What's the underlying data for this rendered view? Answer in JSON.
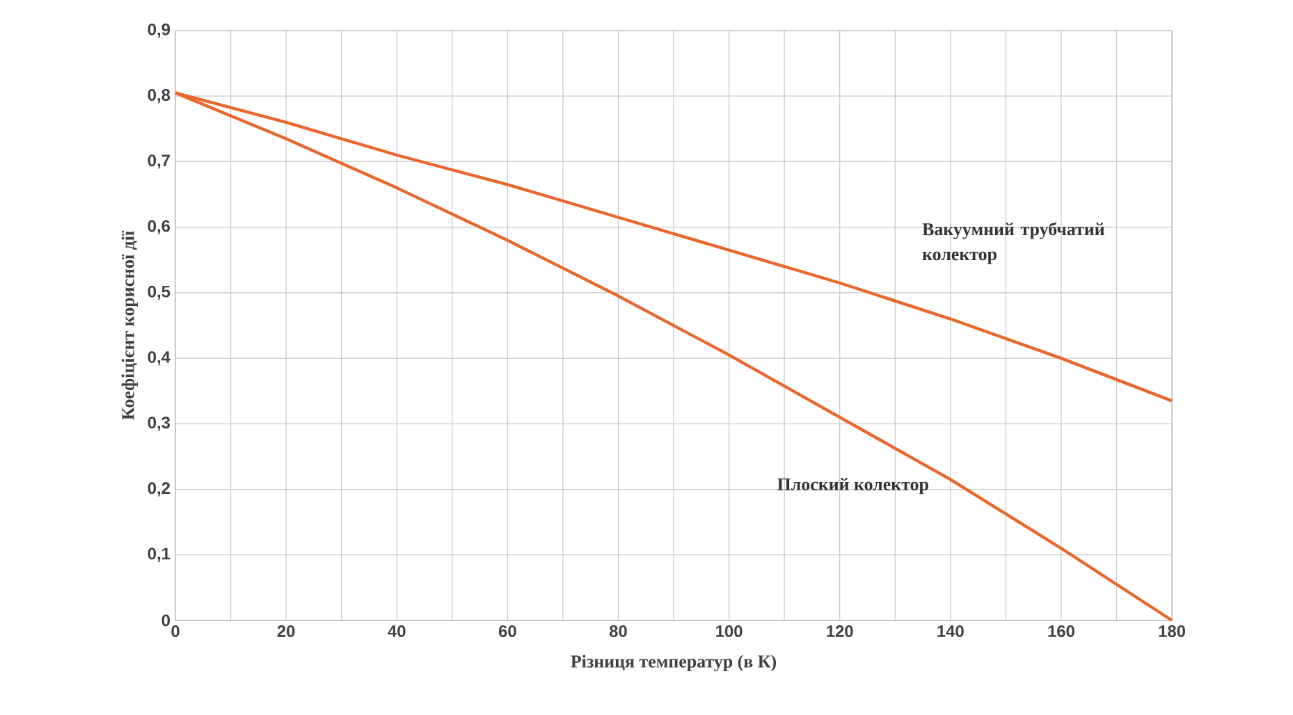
{
  "chart_data": {
    "type": "line",
    "xlabel": "Різниця температур (в К)",
    "ylabel": "Коефіцієнт корисної дії",
    "x": [
      0,
      20,
      40,
      60,
      80,
      100,
      120,
      140,
      160,
      180
    ],
    "series": [
      {
        "name": "Вакуумний трубчатий колектор",
        "color": "#e9662c",
        "values": [
          0.805,
          0.76,
          0.71,
          0.665,
          0.615,
          0.565,
          0.515,
          0.46,
          0.4,
          0.335
        ]
      },
      {
        "name": "Плоский колектор",
        "color": "#e9662c",
        "values": [
          0.805,
          0.735,
          0.66,
          0.58,
          0.495,
          0.405,
          0.31,
          0.215,
          0.11,
          0.0
        ]
      }
    ],
    "xlim": [
      0,
      180
    ],
    "ylim": [
      0,
      0.9
    ],
    "xticks": [
      0,
      {
        "value": 10,
        "label": null
      },
      20,
      {
        "value": 30,
        "label": null
      },
      40,
      {
        "value": 50,
        "label": null
      },
      60,
      {
        "value": 70,
        "label": null
      },
      80,
      {
        "value": 90,
        "label": null
      },
      100,
      {
        "value": 110,
        "label": null
      },
      120,
      {
        "value": 130,
        "label": null
      },
      140,
      {
        "value": 150,
        "label": null
      },
      160,
      {
        "value": 170,
        "label": null
      },
      180
    ],
    "yticks": [
      0,
      {
        "value": 0.1,
        "label": "0,1"
      },
      {
        "value": 0.2,
        "label": "0,2"
      },
      {
        "value": 0.3,
        "label": "0,3"
      },
      {
        "value": 0.4,
        "label": "0,4"
      },
      {
        "value": 0.5,
        "label": "0,5"
      },
      {
        "value": 0.6,
        "label": "0,6"
      },
      {
        "value": 0.7,
        "label": "0,7"
      },
      {
        "value": 0.8,
        "label": "0,8"
      },
      {
        "value": 0.9,
        "label": "0,9"
      }
    ],
    "grid": true,
    "legend": false,
    "marker": "none",
    "line_style": "solid"
  }
}
